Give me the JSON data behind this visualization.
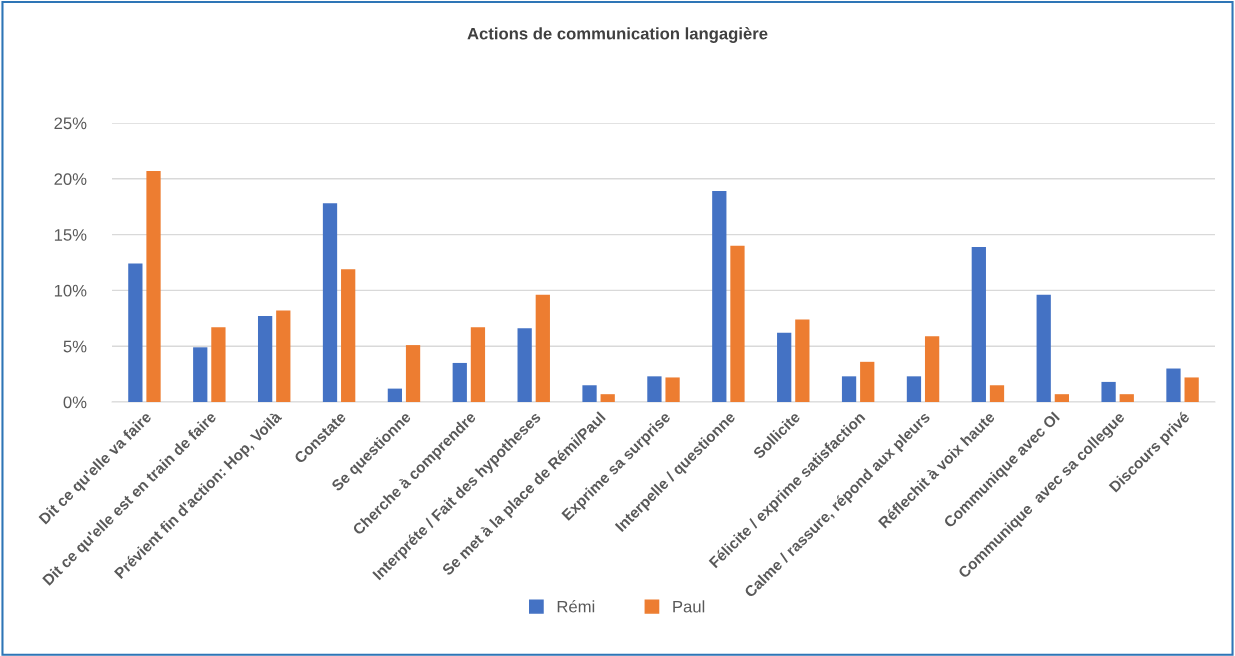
{
  "chart_data": {
    "type": "bar",
    "title": "Actions de communication langagière",
    "categories": [
      "Dit ce qu'elle va faire",
      "Dit ce qu'elle est en train de faire",
      "Prévient fin d'action: Hop, Voilà",
      "Constate",
      "Se questionne",
      "Cherche à comprendre",
      "Interpréte / Fait des hypotheses",
      "Se met à la place de Rémi/Paul",
      "Exprime sa surprise",
      "Interpelle / questionne",
      "Sollicite",
      "Félicite / exprime satisfaction",
      "Calme / rassure, répond aux pleurs",
      "Réflechit à voix haute",
      "Communique avec OI",
      "Communique  avec sa collegue",
      "Discours privé"
    ],
    "series": [
      {
        "name": "Rémi",
        "color": "#4472c4",
        "values": [
          12.4,
          4.9,
          7.7,
          17.8,
          1.2,
          3.5,
          6.6,
          1.5,
          2.3,
          18.9,
          6.2,
          2.3,
          2.3,
          13.9,
          9.6,
          1.8,
          3.0
        ]
      },
      {
        "name": "Paul",
        "color": "#ed7d31",
        "values": [
          20.7,
          6.7,
          8.2,
          11.9,
          5.1,
          6.7,
          9.6,
          0.7,
          2.2,
          14.0,
          7.4,
          3.6,
          5.9,
          1.5,
          0.7,
          0.7,
          2.2
        ]
      }
    ],
    "ylim": [
      0,
      25
    ],
    "yticks": [
      {
        "value": 0,
        "label": "0%"
      },
      {
        "value": 5,
        "label": "5%"
      },
      {
        "value": 10,
        "label": "10%"
      },
      {
        "value": 15,
        "label": "15%"
      },
      {
        "value": 20,
        "label": "20%"
      },
      {
        "value": 25,
        "label": "25%"
      }
    ],
    "grid": "y",
    "legend": "bottom"
  }
}
